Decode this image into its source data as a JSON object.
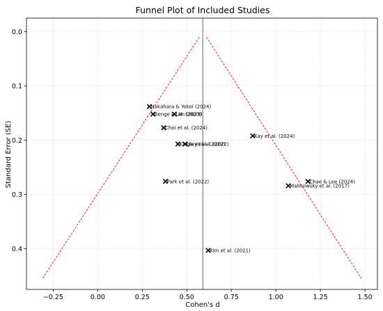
{
  "chart_data": {
    "type": "scatter",
    "title": "Funnel Plot of Included Studies",
    "xlabel": "Cohen's d",
    "ylabel": "Standard Error (SE)",
    "xlim": [
      -0.4,
      1.57
    ],
    "ylim": [
      0.475,
      -0.025
    ],
    "y_inverted": true,
    "grid": true,
    "x_ticks": [
      -0.25,
      0.0,
      0.25,
      0.5,
      0.75,
      1.0,
      1.25,
      1.5
    ],
    "x_tick_labels": [
      "−0.25",
      "0.00",
      "0.25",
      "0.50",
      "0.75",
      "1.00",
      "1.25",
      "1.50"
    ],
    "y_ticks": [
      0.0,
      0.1,
      0.2,
      0.3,
      0.4
    ],
    "y_tick_labels": [
      "0.0",
      "0.1",
      "0.2",
      "0.3",
      "0.4"
    ],
    "pooled_effect": 0.59,
    "funnel_lines": [
      {
        "x": [
          0.57,
          -0.31
        ],
        "y": [
          0.01,
          0.455
        ],
        "color": "#e8261c"
      },
      {
        "x": [
          0.61,
          1.48
        ],
        "y": [
          0.01,
          0.455
        ],
        "color": "#e8261c"
      }
    ],
    "points": [
      {
        "label": "Nakahara & Yokoi (2024)",
        "x": 0.29,
        "y": 0.138
      },
      {
        "label": "Benge et al. (2023)",
        "x": 0.31,
        "y": 0.152
      },
      {
        "label": "Lim (2023)",
        "x": 0.43,
        "y": 0.152
      },
      {
        "label": "Choi et al. (2024)",
        "x": 0.37,
        "y": 0.177
      },
      {
        "label": "Kay et al. (2024)",
        "x": 0.87,
        "y": 0.192
      },
      {
        "label": "Kingley et al. (2022)",
        "x": 0.45,
        "y": 0.207
      },
      {
        "label": "Liu et al. (2022)",
        "x": 0.49,
        "y": 0.207
      },
      {
        "label": "Park et al. (2022)",
        "x": 0.38,
        "y": 0.276
      },
      {
        "label": "Chae & Lee (2024)",
        "x": 1.18,
        "y": 0.276
      },
      {
        "label": "Malinowsky et al. (2017)",
        "x": 1.07,
        "y": 0.284
      },
      {
        "label": "Kim et al. (2021)",
        "x": 0.62,
        "y": 0.403
      }
    ],
    "colors": {
      "points": "#000000",
      "funnel": "#e8261c",
      "pooled": "#808080"
    }
  }
}
